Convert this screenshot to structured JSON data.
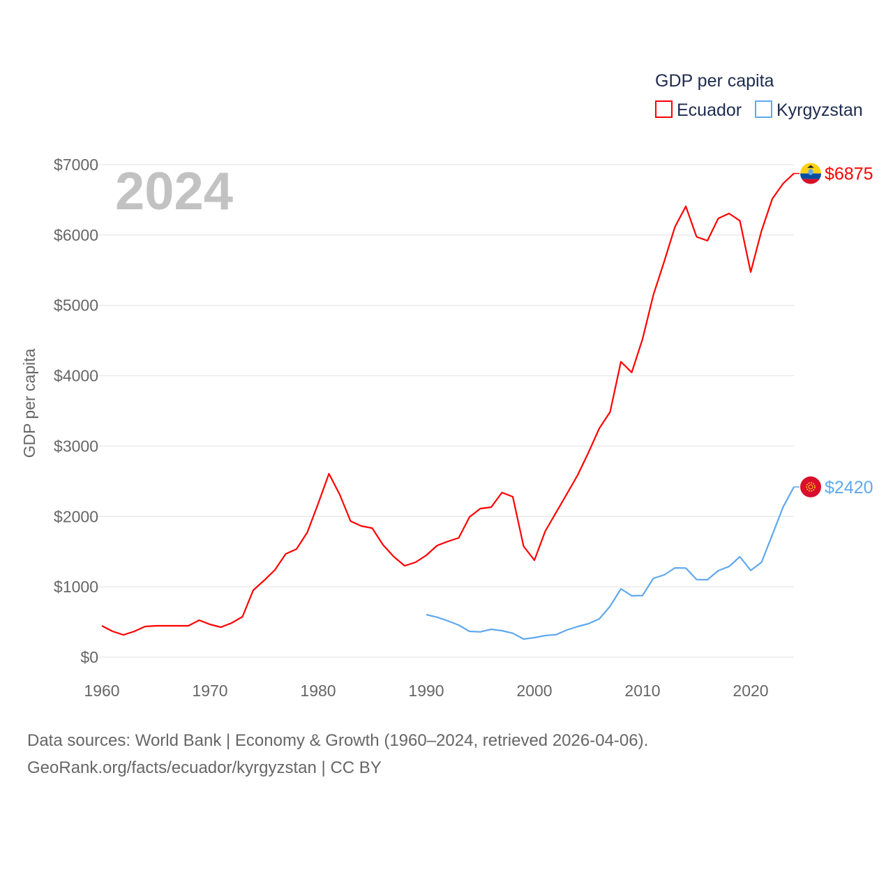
{
  "chart_data": {
    "type": "line",
    "title": "GDP per capita",
    "year_label": "2024",
    "ylabel": "GDP per capita",
    "xlabel": "",
    "xlim": [
      1960,
      2024
    ],
    "ylim": [
      0,
      7000
    ],
    "x_ticks": [
      1960,
      1970,
      1980,
      1990,
      2000,
      2010,
      2020
    ],
    "x_tick_labels": [
      "1960",
      "1970",
      "1980",
      "1990",
      "2000",
      "2010",
      "2020"
    ],
    "y_ticks": [
      0,
      1000,
      2000,
      3000,
      4000,
      5000,
      6000,
      7000
    ],
    "y_tick_labels": [
      "$0",
      "$1000",
      "$2000",
      "$3000",
      "$4000",
      "$5000",
      "$6000",
      "$7000"
    ],
    "grid": true,
    "legend_position": "top-right",
    "series": [
      {
        "name": "Ecuador",
        "color": "#ff0000",
        "end_label": "$6875",
        "flag": "ecuador-flag",
        "start_year": 1960,
        "values": [
          446,
          367,
          317,
          367,
          436,
          446,
          446,
          446,
          446,
          525,
          466,
          426,
          486,
          575,
          952,
          1091,
          1239,
          1467,
          1537,
          1775,
          2181,
          2608,
          2310,
          1933,
          1864,
          1834,
          1596,
          1428,
          1299,
          1348,
          1448,
          1586,
          1646,
          1695,
          1993,
          2112,
          2132,
          2340,
          2280,
          1576,
          1378,
          1790,
          2055,
          2320,
          2588,
          2909,
          3252,
          3485,
          4199,
          4047,
          4521,
          5148,
          5622,
          6117,
          6407,
          5974,
          5919,
          6236,
          6306,
          6203,
          5473,
          6058,
          6514,
          6732,
          6875
        ]
      },
      {
        "name": "Kyrgyzstan",
        "color": "#5fa8ee",
        "end_label": "$2420",
        "flag": "kyrgyzstan-flag",
        "start_year": 1990,
        "values": [
          605,
          568,
          516,
          456,
          367,
          360,
          397,
          377,
          340,
          258,
          278,
          307,
          320,
          387,
          436,
          476,
          545,
          724,
          972,
          873,
          876,
          1120,
          1170,
          1269,
          1266,
          1104,
          1101,
          1229,
          1289,
          1428,
          1233,
          1348,
          1738,
          2135,
          2420
        ]
      }
    ]
  },
  "footer": {
    "line1": "Data sources: World Bank | Economy & Growth (1960–2024, retrieved 2026-04-06).",
    "line2": "GeoRank.org/facts/ecuador/kyrgyzstan | CC BY"
  }
}
